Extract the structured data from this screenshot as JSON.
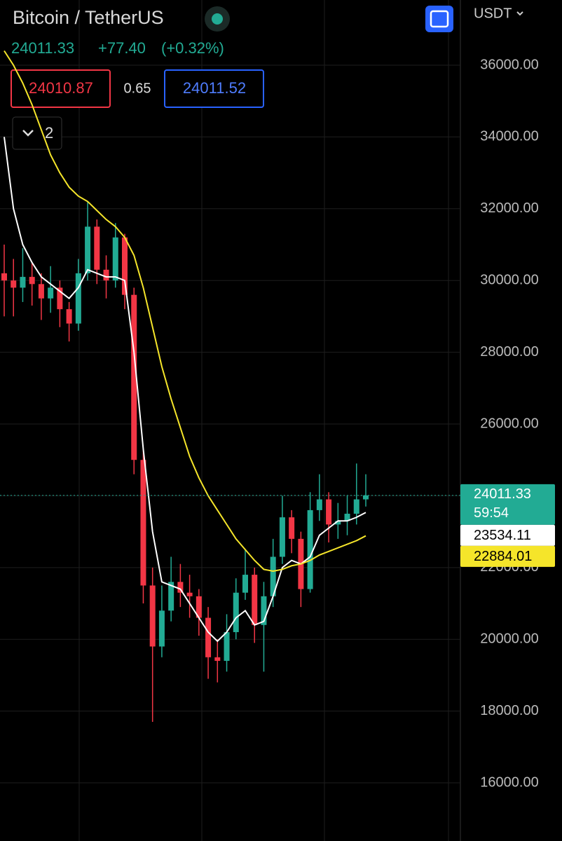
{
  "header": {
    "symbol": "Bitcoin / TetherUS",
    "price": "24011.33",
    "change": "+77.40",
    "change_pct": "(+0.32%)",
    "bid": "24010.87",
    "spread": "0.65",
    "ask": "24011.52",
    "indicators": "2",
    "currency": "USDT",
    "countdown": "59:54"
  },
  "chart_data": {
    "type": "candlestick",
    "up_color": "#22ab94",
    "down_color": "#f23645",
    "grid": true,
    "ylim": [
      14380,
      37816
    ],
    "yticks": [
      {
        "value": 16000,
        "label": "16000.00"
      },
      {
        "value": 18000,
        "label": "18000.00"
      },
      {
        "value": 20000,
        "label": "20000.00"
      },
      {
        "value": 22000,
        "label": "22000.00"
      },
      {
        "value": 24000,
        "label": "24000.00"
      },
      {
        "value": 26000,
        "label": "26000.00"
      },
      {
        "value": 28000,
        "label": "28000.00"
      },
      {
        "value": 30000,
        "label": "30000.00"
      },
      {
        "value": 32000,
        "label": "32000.00"
      },
      {
        "value": 34000,
        "label": "34000.00"
      },
      {
        "value": 36000,
        "label": "36000.00"
      }
    ],
    "open": [
      30200,
      30000,
      29800,
      30100,
      29900,
      29500,
      29800,
      29200,
      28800,
      30200,
      31500,
      30300,
      30000,
      31200,
      29600,
      25000,
      21500,
      19800,
      20800,
      21600,
      21300,
      21200,
      20600,
      19500,
      19400,
      20200,
      21300,
      21800,
      20400,
      21200,
      22300,
      23400,
      22800,
      21400,
      23600,
      23900,
      23200,
      23300,
      23500,
      23900
    ],
    "high": [
      31000,
      30600,
      30900,
      30500,
      30200,
      30400,
      30000,
      29400,
      30600,
      32200,
      31700,
      30700,
      31600,
      31300,
      29800,
      25300,
      22000,
      21500,
      22300,
      22100,
      21800,
      21400,
      20900,
      20000,
      20700,
      21700,
      22500,
      22000,
      21600,
      22800,
      24000,
      23600,
      23000,
      24100,
      24600,
      24100,
      23800,
      24000,
      24900,
      24600
    ],
    "low": [
      29000,
      29000,
      29400,
      29300,
      28900,
      29100,
      28700,
      28300,
      28600,
      30000,
      29900,
      29500,
      29800,
      29200,
      24600,
      21000,
      17700,
      19500,
      20500,
      20900,
      20600,
      20100,
      18900,
      18800,
      19100,
      20000,
      21100,
      19900,
      19100,
      20900,
      22100,
      22400,
      20900,
      21300,
      23300,
      22700,
      22800,
      22900,
      23200,
      23700
    ],
    "close": [
      30000,
      29800,
      30100,
      29900,
      29500,
      29800,
      29200,
      28800,
      30200,
      31500,
      30300,
      30000,
      31200,
      29600,
      25000,
      21500,
      19800,
      20800,
      21600,
      21300,
      21200,
      20600,
      19500,
      19400,
      20200,
      21300,
      21800,
      20400,
      21200,
      22300,
      23400,
      22800,
      21400,
      23600,
      23900,
      23200,
      23300,
      23500,
      23900,
      24011.33
    ],
    "series": [
      {
        "color": "#ffffff",
        "values": [
          34000,
          32000,
          31000,
          30500,
          30100,
          29900,
          29700,
          29500,
          29800,
          30300,
          30200,
          30100,
          30100,
          30000,
          28000,
          25300,
          23000,
          21600,
          21500,
          21400,
          21000,
          20600,
          20200,
          19950,
          20200,
          20600,
          20800,
          20400,
          20500,
          21200,
          22000,
          22200,
          22100,
          22300,
          22900,
          23100,
          23300,
          23300,
          23400,
          23534.11
        ]
      },
      {
        "color": "#f5e52a",
        "values": [
          36400,
          36000,
          35500,
          34900,
          34200,
          33500,
          33000,
          32600,
          32350,
          32200,
          31950,
          31700,
          31500,
          31200,
          30700,
          29800,
          28700,
          27600,
          26700,
          25900,
          25100,
          24500,
          24000,
          23600,
          23200,
          22800,
          22500,
          22200,
          21950,
          21900,
          21950,
          22050,
          22100,
          22200,
          22350,
          22450,
          22550,
          22650,
          22750,
          22884.01
        ]
      }
    ]
  }
}
